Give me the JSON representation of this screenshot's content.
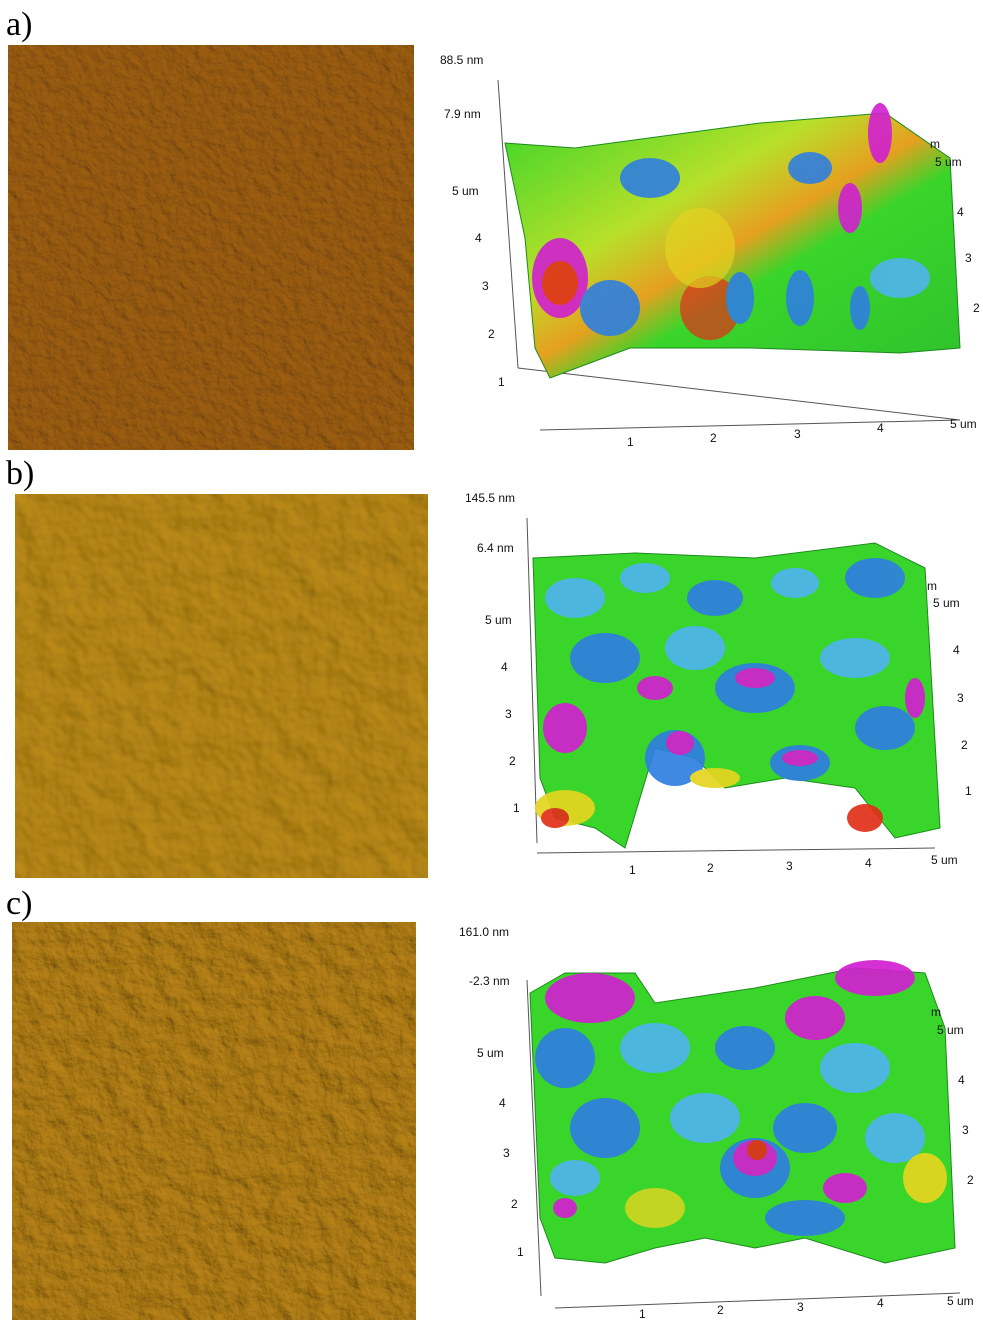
{
  "panels": [
    {
      "label": "a)",
      "z_max": "88.5 nm",
      "z_min": "7.9 nm",
      "y_ticks": [
        "5 um",
        "4",
        "3",
        "2",
        "1"
      ],
      "x_ticks": [
        "1",
        "2",
        "3",
        "4",
        "5 um"
      ],
      "right_ticks": [
        "m",
        "5 um",
        "4",
        "3",
        "2"
      ]
    },
    {
      "label": "b)",
      "z_max": "145.5 nm",
      "z_min": "6.4 nm",
      "y_ticks": [
        "5 um",
        "4",
        "3",
        "2",
        "1"
      ],
      "x_ticks": [
        "1",
        "2",
        "3",
        "4",
        "5 um"
      ],
      "right_ticks": [
        "m",
        "5 um",
        "4",
        "3",
        "2",
        "1"
      ]
    },
    {
      "label": "c)",
      "z_max": "161.0 nm",
      "z_min": "-2.3 nm",
      "y_ticks": [
        "5 um",
        "4",
        "3",
        "2",
        "1"
      ],
      "x_ticks": [
        "1",
        "2",
        "3",
        "4",
        "5 um"
      ],
      "right_ticks": [
        "m",
        "5 um",
        "4",
        "3",
        "2"
      ]
    }
  ],
  "colors": {
    "afm_a": "#9a6a1c",
    "afm_b": "#b8901e",
    "afm_c": "#b58a20",
    "surface_green": "#39d52a",
    "surface_blue": "#2f7fe0",
    "surface_cyan": "#4fb4ee",
    "surface_magenta": "#d11fd0",
    "surface_yellow": "#e6d520",
    "surface_red": "#e0301a"
  }
}
